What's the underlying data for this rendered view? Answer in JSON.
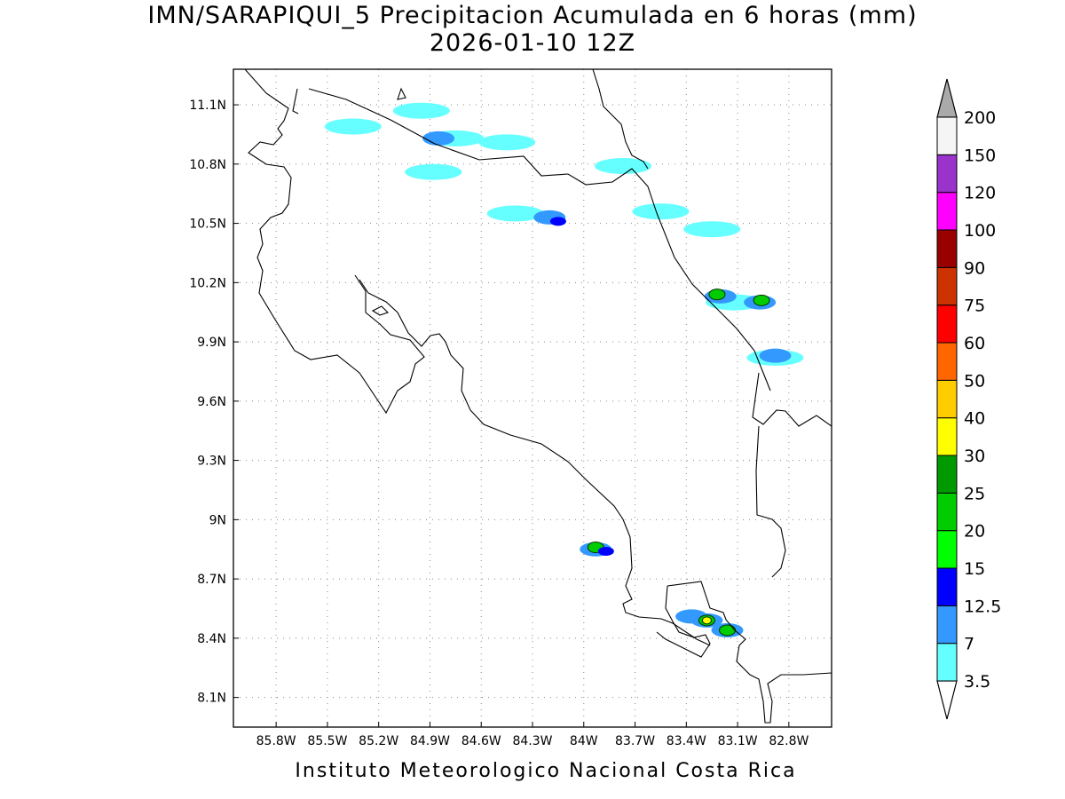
{
  "title": {
    "line1": "IMN/SARAPIQUI_5 Precipitacion Acumulada en 6 horas (mm)",
    "line2": "2026-01-10 12Z"
  },
  "credit": "Instituto Meteorologico Nacional Costa Rica",
  "map": {
    "lon_range": [
      -86.05,
      -82.55
    ],
    "lat_range": [
      7.95,
      11.28
    ],
    "lon_ticks": [
      {
        "value": -85.8,
        "label": "85.8W"
      },
      {
        "value": -85.5,
        "label": "85.5W"
      },
      {
        "value": -85.2,
        "label": "85.2W"
      },
      {
        "value": -84.9,
        "label": "84.9W"
      },
      {
        "value": -84.6,
        "label": "84.6W"
      },
      {
        "value": -84.3,
        "label": "84.3W"
      },
      {
        "value": -84.0,
        "label": "84W"
      },
      {
        "value": -83.7,
        "label": "83.7W"
      },
      {
        "value": -83.4,
        "label": "83.4W"
      },
      {
        "value": -83.1,
        "label": "83.1W"
      },
      {
        "value": -82.8,
        "label": "82.8W"
      }
    ],
    "lat_ticks": [
      {
        "value": 11.1,
        "label": "11.1N"
      },
      {
        "value": 10.8,
        "label": "10.8N"
      },
      {
        "value": 10.5,
        "label": "10.5N"
      },
      {
        "value": 10.2,
        "label": "10.2N"
      },
      {
        "value": 9.9,
        "label": "9.9N"
      },
      {
        "value": 9.6,
        "label": "9.6N"
      },
      {
        "value": 9.3,
        "label": "9.3N"
      },
      {
        "value": 9.0,
        "label": "9N"
      },
      {
        "value": 8.7,
        "label": "8.7N"
      },
      {
        "value": 8.4,
        "label": "8.4N"
      },
      {
        "value": 8.1,
        "label": "8.1N"
      }
    ],
    "grid": "dotted",
    "coastline_color": "#000000"
  },
  "colorbar": {
    "top_label": "200",
    "bins": [
      {
        "from": "3.5",
        "color": "#66ffff"
      },
      {
        "from": "7",
        "color": "#3399ff"
      },
      {
        "from": "12.5",
        "color": "#0000ff"
      },
      {
        "from": "15",
        "color": "#00ff00"
      },
      {
        "from": "20",
        "color": "#00cc00"
      },
      {
        "from": "25",
        "color": "#009900"
      },
      {
        "from": "30",
        "color": "#ffff00"
      },
      {
        "from": "40",
        "color": "#ffcc00"
      },
      {
        "from": "50",
        "color": "#ff6600"
      },
      {
        "from": "60",
        "color": "#ff0000"
      },
      {
        "from": "75",
        "color": "#cc3300"
      },
      {
        "from": "90",
        "color": "#990000"
      },
      {
        "from": "100",
        "color": "#ff00ff"
      },
      {
        "from": "120",
        "color": "#9933cc"
      },
      {
        "from": "150",
        "color": "#f5f5f5"
      }
    ],
    "over_color": "#aaaaaa",
    "under_color": "#ffffff"
  },
  "precip_cells": [
    {
      "lon": -85.35,
      "lat": 10.99,
      "level": "3.5"
    },
    {
      "lon": -84.95,
      "lat": 11.07,
      "level": "3.5"
    },
    {
      "lon": -84.75,
      "lat": 10.93,
      "level": "3.5"
    },
    {
      "lon": -84.85,
      "lat": 10.93,
      "level": "7"
    },
    {
      "lon": -84.45,
      "lat": 10.91,
      "level": "3.5"
    },
    {
      "lon": -84.88,
      "lat": 10.76,
      "level": "3.5"
    },
    {
      "lon": -83.77,
      "lat": 10.79,
      "level": "3.5"
    },
    {
      "lon": -84.4,
      "lat": 10.55,
      "level": "3.5"
    },
    {
      "lon": -84.2,
      "lat": 10.53,
      "level": "7"
    },
    {
      "lon": -84.15,
      "lat": 10.51,
      "level": "12.5"
    },
    {
      "lon": -83.55,
      "lat": 10.56,
      "level": "3.5"
    },
    {
      "lon": -83.25,
      "lat": 10.47,
      "level": "3.5"
    },
    {
      "lon": -83.12,
      "lat": 10.1,
      "level": "3.5"
    },
    {
      "lon": -83.2,
      "lat": 10.13,
      "level": "7"
    },
    {
      "lon": -83.22,
      "lat": 10.14,
      "level": "20"
    },
    {
      "lon": -82.97,
      "lat": 10.1,
      "level": "7"
    },
    {
      "lon": -82.96,
      "lat": 10.11,
      "level": "20"
    },
    {
      "lon": -82.88,
      "lat": 9.82,
      "level": "3.5"
    },
    {
      "lon": -82.88,
      "lat": 9.83,
      "level": "7"
    },
    {
      "lon": -83.93,
      "lat": 8.85,
      "level": "7"
    },
    {
      "lon": -83.93,
      "lat": 8.86,
      "level": "20"
    },
    {
      "lon": -83.87,
      "lat": 8.84,
      "level": "12.5"
    },
    {
      "lon": -83.37,
      "lat": 8.51,
      "level": "7"
    },
    {
      "lon": -83.28,
      "lat": 8.49,
      "level": "7"
    },
    {
      "lon": -83.28,
      "lat": 8.49,
      "level": "20"
    },
    {
      "lon": -83.28,
      "lat": 8.49,
      "level": "30"
    },
    {
      "lon": -83.16,
      "lat": 8.44,
      "level": "7"
    },
    {
      "lon": -83.16,
      "lat": 8.44,
      "level": "20"
    }
  ]
}
